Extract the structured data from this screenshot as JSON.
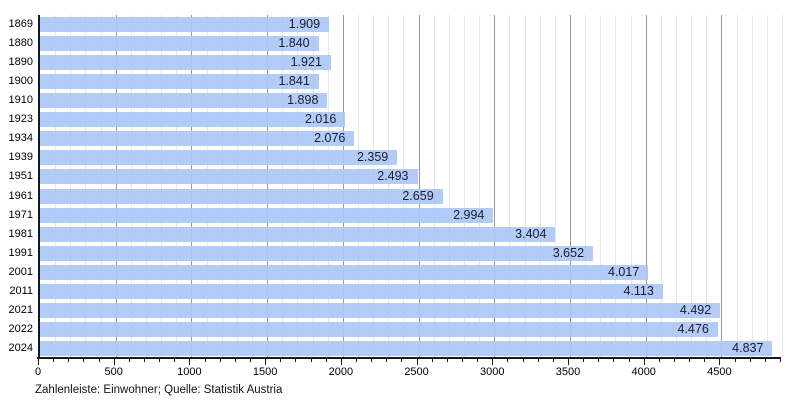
{
  "chart_data": {
    "type": "bar",
    "orientation": "horizontal",
    "title": "",
    "xlabel": "",
    "ylabel": "",
    "categories": [
      "1869",
      "1880",
      "1890",
      "1900",
      "1910",
      "1923",
      "1934",
      "1939",
      "1951",
      "1961",
      "1971",
      "1981",
      "1991",
      "2001",
      "2011",
      "2021",
      "2022",
      "2024"
    ],
    "values": [
      1909,
      1840,
      1921,
      1841,
      1898,
      2016,
      2076,
      2359,
      2493,
      2659,
      2994,
      3404,
      3652,
      4017,
      4113,
      4492,
      4476,
      4837
    ],
    "value_labels": [
      "1.909",
      "1.840",
      "1.921",
      "1.841",
      "1.898",
      "2.016",
      "2.076",
      "2.359",
      "2.493",
      "2.659",
      "2.994",
      "3.404",
      "3.652",
      "4.017",
      "4.113",
      "4.492",
      "4.476",
      "4.837"
    ],
    "xlim": [
      0,
      4900
    ],
    "x_major_tick_step": 500,
    "x_minor_tick_step": 100,
    "x_tick_labels": [
      "0",
      "500",
      "1000",
      "1500",
      "2000",
      "2500",
      "3000",
      "3500",
      "4000",
      "4500"
    ],
    "grid": true,
    "legend_position": "none"
  },
  "footer": {
    "caption": "Zahlenleiste: Einwohner; Quelle: Statistik Austria"
  },
  "colors": {
    "bar_fill": "rgba(171,199,246,0.92)",
    "bar_label": "#1b1b32",
    "grid_minor": "#e7e7e7",
    "grid_major": "#9a9a9a",
    "axis": "#1a1a1a",
    "background": "#ffffff"
  }
}
